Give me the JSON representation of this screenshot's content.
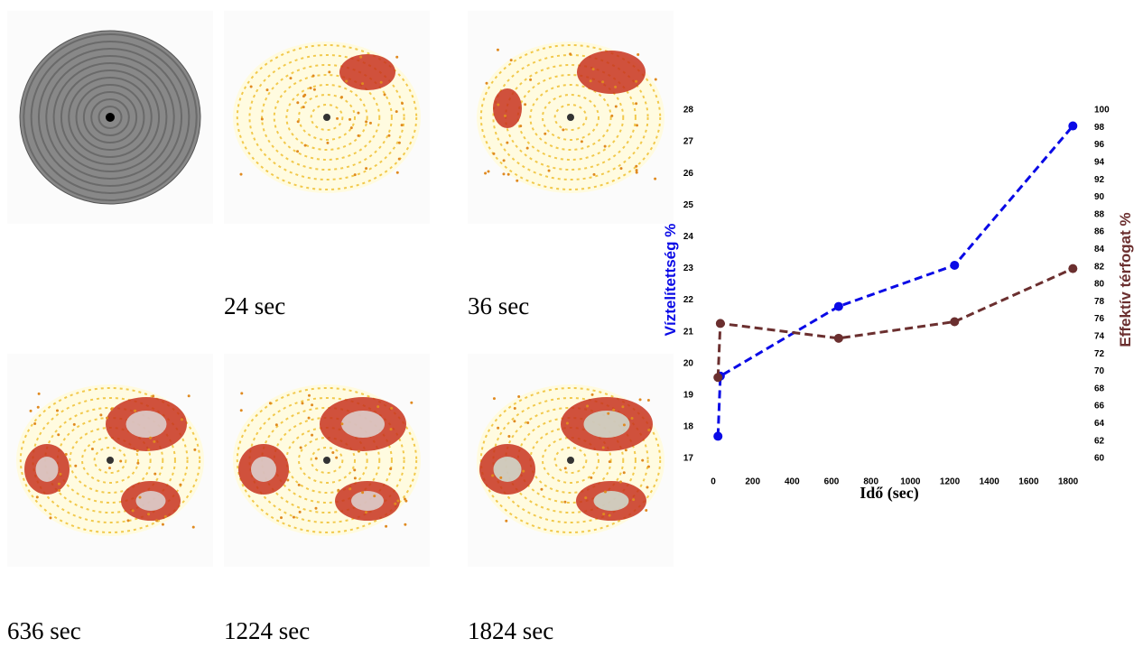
{
  "captions": [
    "24 sec",
    "36 sec",
    "636 sec",
    "1224 sec",
    "1824 sec"
  ],
  "chart_data": {
    "type": "line",
    "x_label": "Idő (sec)",
    "y_label": "Víztelítettség %",
    "y2_label": "Effektív térfogat %",
    "x": [
      24,
      36,
      636,
      1224,
      1824
    ],
    "series": [
      {
        "name": "Víztelítettség %",
        "color": "#0a0ae6",
        "values": [
          17.7,
          19.6,
          21.8,
          23.1,
          27.5
        ]
      },
      {
        "name": "Effektív térfogat %",
        "color": "#6b2f2f",
        "axis": "y2",
        "values": [
          69.3,
          75.5,
          73.8,
          75.7,
          81.8
        ]
      }
    ],
    "xlim": [
      0,
      1850
    ],
    "xticks": [
      0,
      200,
      400,
      600,
      800,
      1000,
      1200,
      1400,
      1600,
      1800
    ],
    "ylim": [
      17,
      28
    ],
    "yticks": [
      17,
      18,
      19,
      20,
      21,
      22,
      23,
      24,
      25,
      26,
      27,
      28
    ],
    "y2lim": [
      60,
      100
    ],
    "y2ticks": [
      60,
      62,
      64,
      66,
      68,
      70,
      72,
      74,
      76,
      78,
      80,
      82,
      84,
      86,
      88,
      90,
      92,
      94,
      96,
      98,
      100
    ],
    "line_style": "dashed",
    "grid": false
  }
}
